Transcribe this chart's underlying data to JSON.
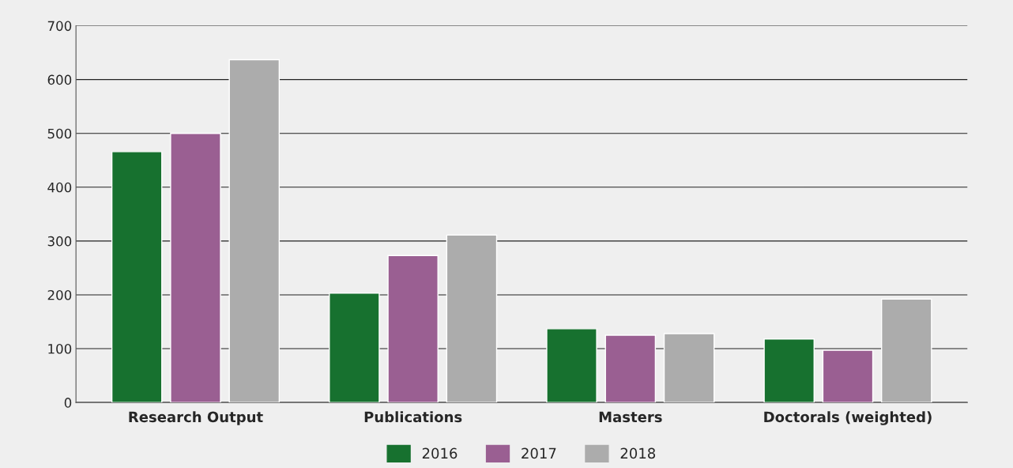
{
  "chart_data": {
    "type": "bar",
    "categories": [
      "Research Output",
      "Publications",
      "Masters",
      "Doctorals (weighted)"
    ],
    "series": [
      {
        "name": "2016",
        "color": "#17712f",
        "values": [
          466,
          203,
          137,
          118
        ]
      },
      {
        "name": "2017",
        "color": "#9a5f92",
        "values": [
          500,
          273,
          125,
          97
        ]
      },
      {
        "name": "2018",
        "color": "#acacac",
        "values": [
          637,
          311,
          128,
          192
        ]
      }
    ],
    "ylim": [
      0,
      700
    ],
    "yticks": [
      0,
      100,
      200,
      300,
      400,
      500,
      600,
      700
    ],
    "grid": "y",
    "legend": "bottom"
  }
}
